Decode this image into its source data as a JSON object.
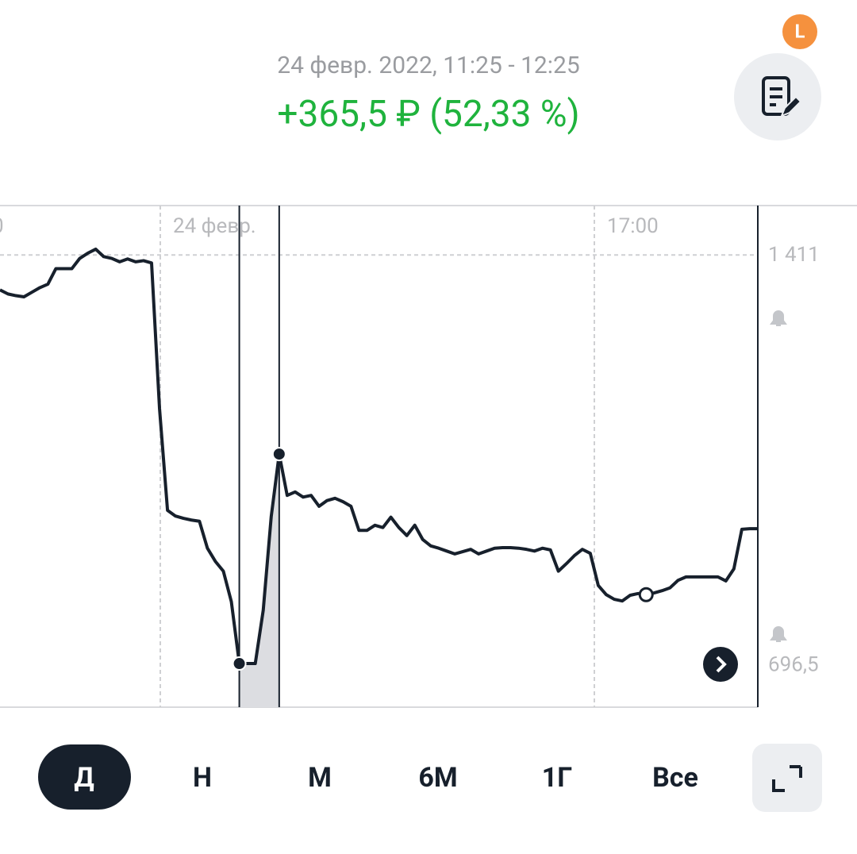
{
  "header": {
    "period": "24 февр. 2022, 11:25 - 12:25",
    "change": "+365,5 ₽ (52,33 %)",
    "badge": "L"
  },
  "chart_data": {
    "type": "line",
    "x_labels": [
      "0",
      "24 февр.",
      "17:00"
    ],
    "values": [
      1350,
      1343,
      1340,
      1338,
      1346,
      1354,
      1360,
      1387,
      1387,
      1387,
      1405,
      1414,
      1421,
      1408,
      1405,
      1399,
      1404,
      1399,
      1401,
      1397,
      1143,
      966,
      956,
      952,
      949,
      947,
      900,
      877,
      860,
      807,
      699,
      699,
      699,
      792,
      955,
      1064,
      992,
      998,
      989,
      992,
      973,
      983,
      987,
      981,
      973,
      931,
      931,
      940,
      936,
      954,
      936,
      922,
      940,
      915,
      904,
      900,
      895,
      890,
      894,
      898,
      890,
      895,
      900,
      901,
      901,
      900,
      898,
      895,
      900,
      897,
      860,
      873,
      887,
      898,
      891,
      835,
      819,
      811,
      808,
      818,
      821,
      819,
      822,
      826,
      831,
      844,
      850,
      850,
      850,
      850,
      850,
      843,
      864,
      933,
      934,
      934
    ],
    "color": "#17202c",
    "ylim": [
      623,
      1497
    ],
    "yticks": [
      {
        "value": 1411,
        "label": "1 411"
      },
      {
        "value": 696.5,
        "label": "696,5"
      }
    ]
  },
  "periods": [
    "Д",
    "Н",
    "М",
    "6М",
    "1Г",
    "Все"
  ]
}
